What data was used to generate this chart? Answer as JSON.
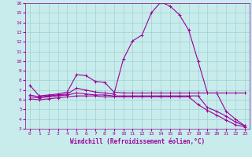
{
  "xlabel": "Windchill (Refroidissement éolien,°C)",
  "ylabel": "",
  "bg_color": "#c8ecec",
  "grid_color": "#a0d0d0",
  "line_color": "#990099",
  "xlim": [
    -0.5,
    23.5
  ],
  "ylim": [
    3,
    16
  ],
  "xticks": [
    0,
    1,
    2,
    3,
    4,
    5,
    6,
    7,
    8,
    9,
    10,
    11,
    12,
    13,
    14,
    15,
    16,
    17,
    18,
    19,
    20,
    21,
    22,
    23
  ],
  "yticks": [
    3,
    4,
    5,
    6,
    7,
    8,
    9,
    10,
    11,
    12,
    13,
    14,
    15,
    16
  ],
  "series": [
    {
      "x": [
        0,
        1,
        2,
        3,
        4,
        5,
        6,
        7,
        8,
        9,
        10,
        11,
        12,
        13,
        14,
        15,
        16,
        17,
        18,
        19,
        20,
        21,
        22,
        23
      ],
      "y": [
        7.5,
        6.4,
        6.5,
        6.6,
        6.8,
        8.6,
        8.5,
        7.9,
        7.8,
        6.8,
        6.7,
        6.7,
        6.7,
        6.7,
        6.7,
        6.7,
        6.7,
        6.7,
        6.7,
        6.7,
        6.7,
        6.7,
        6.7,
        6.7
      ]
    },
    {
      "x": [
        0,
        1,
        2,
        3,
        4,
        5,
        6,
        7,
        8,
        9,
        10,
        11,
        12,
        13,
        14,
        15,
        16,
        17,
        18,
        19,
        20,
        21,
        22,
        23
      ],
      "y": [
        6.5,
        6.3,
        6.4,
        6.5,
        6.6,
        7.2,
        7.0,
        6.8,
        6.7,
        6.6,
        10.2,
        12.1,
        12.7,
        15.0,
        16.1,
        15.7,
        14.8,
        13.2,
        10.0,
        6.7,
        6.7,
        4.8,
        4.0,
        3.3
      ]
    },
    {
      "x": [
        0,
        1,
        2,
        3,
        4,
        5,
        6,
        7,
        8,
        9,
        10,
        11,
        12,
        13,
        14,
        15,
        16,
        17,
        18,
        19,
        20,
        21,
        22,
        23
      ],
      "y": [
        6.3,
        6.2,
        6.3,
        6.4,
        6.5,
        6.7,
        6.6,
        6.5,
        6.5,
        6.4,
        6.4,
        6.4,
        6.4,
        6.4,
        6.4,
        6.4,
        6.4,
        6.4,
        6.4,
        5.2,
        4.8,
        4.3,
        3.7,
        3.3
      ]
    },
    {
      "x": [
        0,
        1,
        2,
        3,
        4,
        5,
        6,
        7,
        8,
        9,
        10,
        11,
        12,
        13,
        14,
        15,
        16,
        17,
        18,
        19,
        20,
        21,
        22,
        23
      ],
      "y": [
        6.1,
        6.0,
        6.1,
        6.2,
        6.3,
        6.4,
        6.4,
        6.4,
        6.3,
        6.3,
        6.3,
        6.3,
        6.3,
        6.3,
        6.3,
        6.3,
        6.3,
        6.3,
        5.5,
        4.9,
        4.4,
        3.9,
        3.4,
        3.2
      ]
    }
  ],
  "marker": "+",
  "markersize": 3,
  "linewidth": 0.8,
  "tick_fontsize": 4.5,
  "xlabel_fontsize": 5.5
}
